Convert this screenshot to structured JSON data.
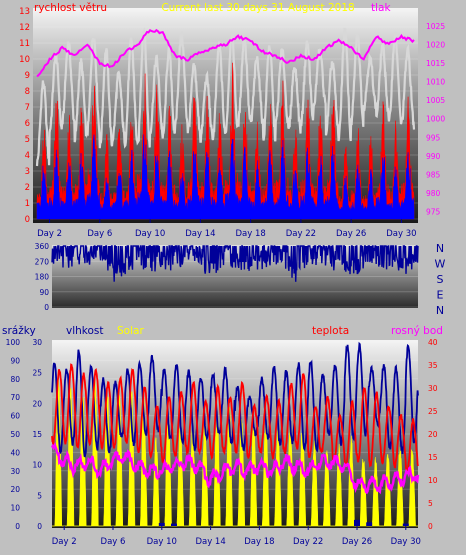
{
  "colors": {
    "panel_bg": "#c0c0c0",
    "wind_gust": "#ff0000",
    "wind_avg": "#0000ff",
    "pressure": "#ff00ff",
    "wind_dir": "#000099",
    "rain": "#000099",
    "humidity": "#d8d8d8",
    "solar": "#ffff00",
    "temperature": "#ff0000",
    "dew_point": "#ff00ff",
    "axis_label": "#000099",
    "title": "#ffff00"
  },
  "chart_data": [
    {
      "type": "line",
      "title": "Current last 30 days 31 August 2018",
      "left_label": "rychlost větru",
      "right_label": "tlak",
      "x_ticks": [
        "Day 2",
        "Day 6",
        "Day 10",
        "Day 14",
        "Day 18",
        "Day 22",
        "Day 26",
        "Day 30"
      ],
      "x_range": [
        1,
        31
      ],
      "left_axis": {
        "range": [
          0,
          13
        ],
        "ticks": [
          "0",
          "1",
          "2",
          "3",
          "4",
          "5",
          "6",
          "7",
          "8",
          "9",
          "10",
          "11",
          "12",
          "13"
        ]
      },
      "right_axis": {
        "range": [
          973,
          1029
        ],
        "ticks": [
          "975",
          "980",
          "985",
          "990",
          "995",
          "1000",
          "1005",
          "1010",
          "1015",
          "1020",
          "1025"
        ]
      },
      "series": [
        {
          "key": "gust",
          "axis": "left",
          "daily_peak": [
            5.8,
            8.2,
            6.8,
            7.5,
            10.5,
            5.5,
            6.2,
            7.2,
            9.5,
            8.8,
            7.3,
            6.0,
            8.5,
            7.8,
            6.9,
            9.8,
            8.0,
            6.5,
            7.5,
            8.7,
            6.2,
            8.3,
            7.2,
            8.5,
            4.8,
            6.0,
            5.5,
            7.5,
            6.3,
            7.8,
            5.5
          ]
        },
        {
          "key": "average",
          "axis": "left",
          "daily_peak": [
            3.8,
            4.5,
            4.0,
            4.3,
            5.8,
            3.2,
            3.8,
            4.4,
            5.8,
            4.9,
            4.3,
            3.6,
            5.0,
            4.6,
            4.1,
            5.5,
            4.7,
            3.8,
            4.4,
            5.0,
            3.6,
            4.9,
            4.2,
            4.9,
            2.8,
            3.6,
            3.2,
            4.6,
            3.7,
            4.6,
            3.2
          ]
        },
        {
          "key": "pressure",
          "axis": "right",
          "x": [
            1,
            2,
            3,
            4,
            5,
            6,
            7,
            8,
            9,
            10,
            11,
            12,
            13,
            14,
            15,
            16,
            17,
            18,
            19,
            20,
            21,
            22,
            23,
            24,
            25,
            26,
            27,
            28,
            29,
            30,
            31
          ],
          "values": [
            1011,
            1016,
            1019,
            1017,
            1020,
            1015,
            1014,
            1018,
            1020,
            1024,
            1023,
            1017,
            1016,
            1018,
            1019,
            1020,
            1022,
            1021,
            1018,
            1017,
            1015,
            1017,
            1016,
            1019,
            1021,
            1019,
            1016,
            1022,
            1020,
            1022,
            1021
          ]
        },
        {
          "key": "humidity",
          "axis": "left",
          "daily_peak": [
            8.5,
            10.2,
            11.0,
            9.8,
            11.5,
            10.5,
            9.0,
            11.2,
            11.8,
            10.0,
            10.5,
            11.5,
            9.5,
            8.8,
            10.8,
            11.5,
            11.2,
            10.0,
            10.8,
            10.5,
            9.5,
            11.0,
            10.5,
            9.8,
            11.8,
            11.5,
            10.0,
            10.8,
            11.5,
            10.5,
            9.8
          ],
          "daily_low": [
            3.5,
            5.5,
            6.0,
            5.0,
            5.5,
            4.5,
            5.0,
            4.8,
            4.5,
            5.5,
            5.0,
            6.0,
            5.5,
            5.0,
            5.2,
            5.5,
            6.0,
            6.0,
            5.0,
            6.0,
            5.5,
            6.0,
            7.0,
            5.5,
            5.0,
            6.0,
            7.0,
            6.5,
            6.0,
            6.0,
            5.5
          ]
        }
      ]
    },
    {
      "type": "line",
      "title": "",
      "right_labels": [
        "N",
        "W",
        "S",
        "E",
        "N"
      ],
      "y_axis": {
        "range": [
          0,
          360
        ],
        "ticks": [
          "0",
          "90",
          "180",
          "270",
          "360"
        ]
      },
      "x_range": [
        1,
        31
      ],
      "series": [
        {
          "key": "wind_direction",
          "x": [
            1,
            2,
            3,
            4,
            5,
            6,
            7,
            8,
            9,
            10,
            11,
            12,
            13,
            14,
            15,
            16,
            17,
            18,
            19,
            20,
            21,
            22,
            23,
            24,
            25,
            26,
            27,
            28,
            29,
            30,
            31
          ],
          "values": [
            250,
            230,
            260,
            240,
            270,
            150,
            200,
            250,
            190,
            240,
            210,
            260,
            270,
            150,
            250,
            240,
            200,
            220,
            260,
            240,
            150,
            270,
            250,
            230,
            200,
            170,
            260,
            240,
            220,
            190,
            250
          ]
        }
      ]
    },
    {
      "type": "line",
      "title": "",
      "labels": {
        "rain": "srážky",
        "humidity": "vlhkost",
        "solar": "Solar",
        "temperature": "teplota",
        "dew_point": "rosný bod"
      },
      "x_ticks": [
        "Day 2",
        "Day 6",
        "Day 10",
        "Day 14",
        "Day 18",
        "Day 22",
        "Day 26",
        "Day 30"
      ],
      "x_range": [
        1,
        31
      ],
      "rain_axis": {
        "range": [
          0,
          30
        ],
        "ticks": [
          "0",
          "5",
          "10",
          "15",
          "20",
          "25",
          "30"
        ]
      },
      "humidity_axis": {
        "range": [
          0,
          100
        ],
        "ticks": [
          "0",
          "10",
          "20",
          "30",
          "40",
          "50",
          "60",
          "70",
          "80",
          "90",
          "100"
        ]
      },
      "temp_axis": {
        "range": [
          0,
          40
        ],
        "ticks": [
          "0",
          "5",
          "10",
          "15",
          "20",
          "25",
          "30",
          "35",
          "40"
        ]
      },
      "series": [
        {
          "key": "temperature",
          "axis": "temp",
          "daily_max": [
            34,
            35,
            33,
            34,
            31,
            32,
            34,
            30,
            26,
            28,
            29,
            31,
            27,
            30,
            28,
            31,
            26,
            28,
            27,
            31,
            33,
            26,
            28,
            24,
            27,
            30,
            29,
            26,
            24,
            23,
            22
          ],
          "daily_min": [
            18,
            18,
            17,
            18,
            17,
            17,
            18,
            16,
            15,
            14,
            15,
            16,
            16,
            15,
            16,
            16,
            15,
            16,
            15,
            16,
            17,
            15,
            16,
            14,
            13,
            14,
            13,
            14,
            13,
            12,
            12
          ]
        },
        {
          "key": "dew_point",
          "axis": "temp",
          "x": [
            1,
            2,
            3,
            4,
            5,
            6,
            7,
            8,
            9,
            10,
            11,
            12,
            13,
            14,
            15,
            16,
            17,
            18,
            19,
            20,
            21,
            22,
            23,
            24,
            25,
            26,
            27,
            28,
            29,
            30,
            31
          ],
          "values": [
            17,
            14,
            13,
            14,
            12,
            14,
            15,
            13,
            12,
            12,
            13,
            14,
            13,
            10,
            12,
            13,
            12,
            13,
            12,
            14,
            13,
            12,
            14,
            14,
            13,
            9,
            9,
            9,
            10,
            11,
            11
          ]
        },
        {
          "key": "humidity",
          "axis": "humidity",
          "daily_max": [
            88,
            85,
            95,
            86,
            80,
            78,
            85,
            88,
            92,
            85,
            87,
            84,
            80,
            82,
            85,
            75,
            70,
            80,
            86,
            84,
            88,
            90,
            82,
            87,
            98,
            98,
            85,
            88,
            86,
            98,
            85
          ],
          "daily_min": [
            40,
            45,
            38,
            42,
            40,
            48,
            45,
            50,
            52,
            47,
            45,
            42,
            48,
            50,
            45,
            42,
            50,
            48,
            44,
            46,
            42,
            40,
            50,
            45,
            48,
            50,
            55,
            42,
            40,
            45,
            45
          ]
        },
        {
          "key": "solar",
          "axis": "humidity",
          "daily_peak": [
            85,
            83,
            80,
            82,
            78,
            75,
            76,
            72,
            50,
            62,
            58,
            55,
            60,
            65,
            70,
            62,
            58,
            60,
            55,
            58,
            57,
            48,
            45,
            45,
            50,
            40,
            38,
            42,
            45,
            44,
            42
          ]
        },
        {
          "key": "rain",
          "axis": "rain",
          "x": [
            10,
            11,
            26,
            27,
            30
          ],
          "values": [
            0.5,
            0.4,
            1.0,
            0.6,
            0.4
          ]
        }
      ]
    }
  ]
}
